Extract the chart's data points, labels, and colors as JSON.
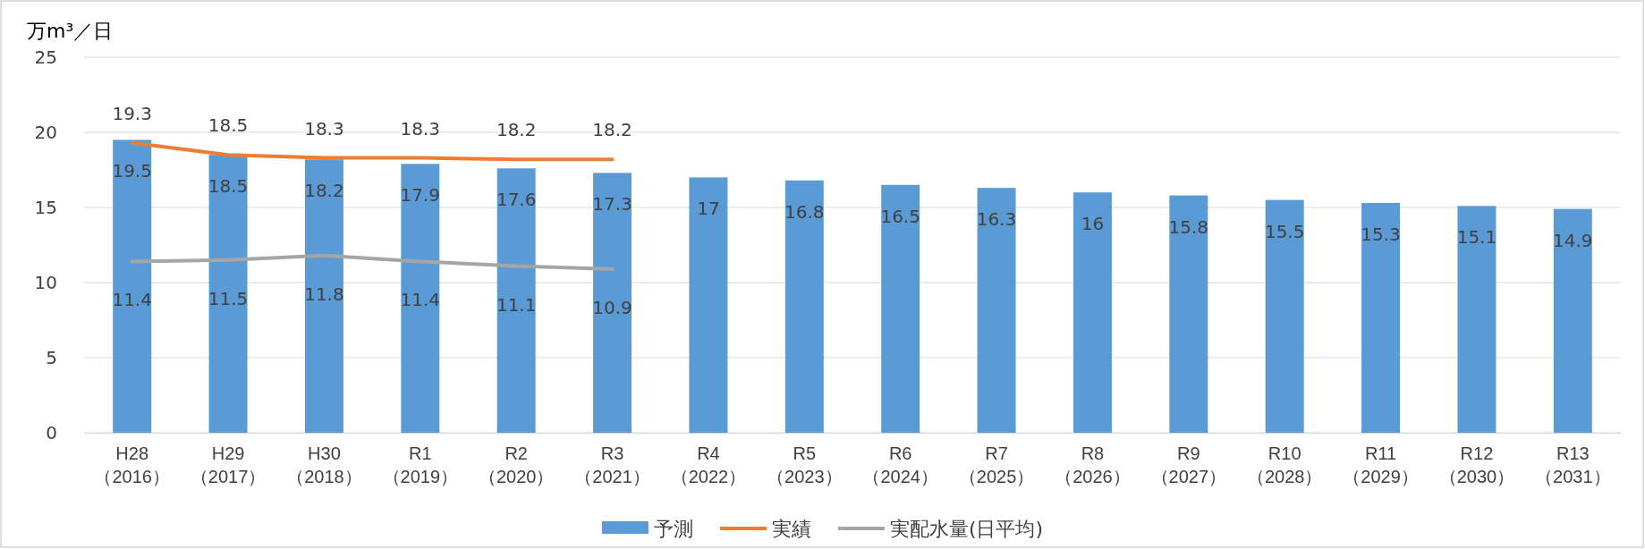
{
  "chart_data": {
    "type": "bar",
    "ylabel": "万m³／日",
    "categories": [
      "H28\n（2016）",
      "H29\n（2017）",
      "H30\n（2018）",
      "R1\n（2019）",
      "R2\n（2020）",
      "R3\n（2021）",
      "R4\n（2022）",
      "R5\n（2023）",
      "R6\n（2024）",
      "R7\n（2025）",
      "R8\n（2026）",
      "R9\n（2027）",
      "R10\n（2028）",
      "R11\n（2029）",
      "R12\n（2030）",
      "R13\n（2031）"
    ],
    "series": [
      {
        "name": "予測",
        "color": "#5b9bd5",
        "values": [
          19.5,
          18.5,
          18.2,
          17.9,
          17.6,
          17.3,
          17,
          16.8,
          16.5,
          16.3,
          16,
          15.8,
          15.5,
          15.3,
          15.1,
          14.9
        ]
      },
      {
        "name": "実績",
        "type": "line",
        "color": "#ed7d31",
        "values": [
          19.3,
          18.5,
          18.3,
          18.3,
          18.2,
          18.2,
          null,
          null,
          null,
          null,
          null,
          null,
          null,
          null,
          null,
          null
        ]
      },
      {
        "name": "実配水量(日平均)",
        "type": "line",
        "color": "#a5a5a5",
        "values": [
          11.4,
          11.5,
          11.8,
          11.4,
          11.1,
          10.9,
          null,
          null,
          null,
          null,
          null,
          null,
          null,
          null,
          null,
          null
        ]
      }
    ],
    "ylim": [
      0,
      25
    ],
    "yticks": [
      0,
      5,
      10,
      15,
      20,
      25
    ],
    "grid": "y",
    "legend": "bottom",
    "data_labels": true
  }
}
